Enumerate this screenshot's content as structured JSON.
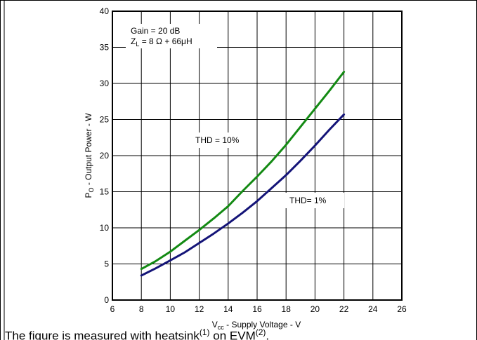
{
  "chart_data": {
    "type": "line",
    "xlabel_main": "V",
    "xlabel_sub": "cc",
    "xlabel_rest": " - Supply Voltage - V",
    "ylabel_main": "P",
    "ylabel_sub": "O",
    "ylabel_rest": " - Output Power - W",
    "xlim": [
      6,
      26
    ],
    "ylim": [
      0,
      40
    ],
    "x_ticks": [
      6,
      8,
      10,
      12,
      14,
      16,
      18,
      20,
      22,
      24,
      26
    ],
    "y_ticks": [
      0,
      5,
      10,
      15,
      20,
      25,
      30,
      35,
      40
    ],
    "grid": true,
    "annotations": {
      "gain": "Gain = 20 dB",
      "zl_main": "Z",
      "zl_sub": "L",
      "zl_rest": " = 8 Ω + 66μH"
    },
    "series": [
      {
        "name": "THD = 10%",
        "color": "#138a13",
        "x": [
          8,
          9,
          10,
          11,
          12,
          13,
          14,
          15,
          16,
          17,
          18,
          19,
          20,
          21,
          22
        ],
        "y": [
          4.3,
          5.4,
          6.7,
          8.2,
          9.7,
          11.3,
          13.0,
          15.1,
          17.1,
          19.2,
          21.5,
          24.0,
          26.5,
          29.0,
          31.6
        ]
      },
      {
        "name": "THD= 1%",
        "color": "#141478",
        "x": [
          8,
          9,
          10,
          11,
          12,
          13,
          14,
          15,
          16,
          17,
          18,
          19,
          20,
          21,
          22
        ],
        "y": [
          3.4,
          4.4,
          5.5,
          6.6,
          7.9,
          9.2,
          10.6,
          12.1,
          13.7,
          15.5,
          17.3,
          19.3,
          21.4,
          23.6,
          25.7
        ]
      }
    ]
  },
  "caption": {
    "text_a": "The figure is measured with heatsink",
    "sup_a": "(1)",
    "text_b": " on EVM",
    "sup_b": "(2)",
    "text_c": "."
  }
}
